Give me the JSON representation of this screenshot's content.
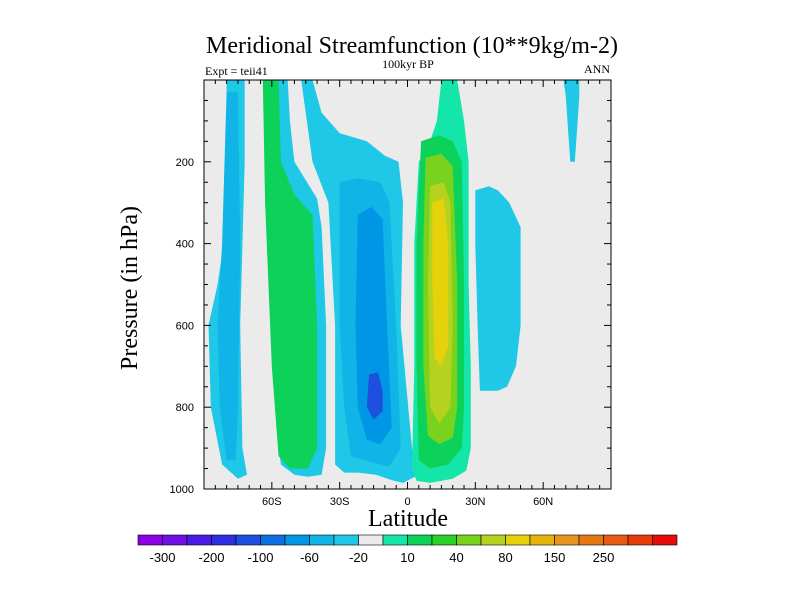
{
  "chart_data": {
    "type": "contour",
    "title": "Meridional Streamfunction (10**9kg/m-2)",
    "left_string": "Expt = teii41",
    "center_string": "100kyr BP",
    "right_string": "ANN",
    "xlabel": "Latitude",
    "ylabel": "Pressure (in hPa)",
    "x_ticks": [
      {
        "value": -60,
        "label": "60S"
      },
      {
        "value": -30,
        "label": "30S"
      },
      {
        "value": 0,
        "label": "0"
      },
      {
        "value": 30,
        "label": "30N"
      },
      {
        "value": 60,
        "label": "60N"
      }
    ],
    "y_ticks": [
      {
        "value": 200,
        "label": "200"
      },
      {
        "value": 400,
        "label": "400"
      },
      {
        "value": 600,
        "label": "600"
      },
      {
        "value": 800,
        "label": "800"
      },
      {
        "value": 1000,
        "label": "1000"
      }
    ],
    "xlim": [
      -90,
      90
    ],
    "ylim": [
      1000,
      0
    ],
    "colorbar": {
      "labels": [
        "-300",
        "-200",
        "-100",
        "-60",
        "-20",
        "10",
        "40",
        "80",
        "150",
        "250"
      ],
      "colors": [
        "#8C00E6",
        "#6E10E6",
        "#4A1CE6",
        "#2E30E0",
        "#1E50E0",
        "#0C70E0",
        "#0096E6",
        "#10B4E6",
        "#1EC8E6",
        "#EBEBEB",
        "#14E6AA",
        "#0CD25A",
        "#28D228",
        "#78D21E",
        "#B4D21E",
        "#E6D20A",
        "#E6B40A",
        "#E6961E",
        "#E67814",
        "#E65A14",
        "#E63C0A",
        "#E60A0A"
      ]
    },
    "background_color": "#EBEBEB",
    "regions": [
      {
        "level": -20,
        "color": "#1EC8E6",
        "points": [
          [
            -80,
            0
          ],
          [
            -72,
            0
          ],
          [
            -72,
            200
          ],
          [
            -74,
            600
          ],
          [
            -73,
            900
          ],
          [
            -71,
            965
          ],
          [
            -75,
            975
          ],
          [
            -82,
            940
          ],
          [
            -87,
            800
          ],
          [
            -88,
            600
          ],
          [
            -84,
            500
          ],
          [
            -80,
            350
          ]
        ]
      },
      {
        "level": -20,
        "color": "#1EC8E6",
        "points": [
          [
            -60,
            0
          ],
          [
            -53,
            0
          ],
          [
            -52,
            100
          ],
          [
            -50,
            200
          ],
          [
            -40,
            290
          ],
          [
            -38,
            360
          ],
          [
            -36,
            600
          ],
          [
            -36,
            900
          ],
          [
            -38,
            965
          ],
          [
            -44,
            970
          ],
          [
            -50,
            965
          ],
          [
            -56,
            940
          ],
          [
            -58,
            850
          ],
          [
            -60,
            600
          ],
          [
            -61,
            300
          ]
        ]
      },
      {
        "level": -20,
        "color": "#1EC8E6",
        "points": [
          [
            -47,
            0
          ],
          [
            -42,
            0
          ],
          [
            -38,
            80
          ],
          [
            -30,
            130
          ],
          [
            -18,
            150
          ],
          [
            -10,
            185
          ],
          [
            -4,
            200
          ],
          [
            -2,
            300
          ],
          [
            -3,
            600
          ],
          [
            2,
            900
          ],
          [
            5,
            965
          ],
          [
            -2,
            985
          ],
          [
            -6,
            980
          ],
          [
            -14,
            965
          ],
          [
            -22,
            960
          ],
          [
            -28,
            960
          ],
          [
            -32,
            940
          ],
          [
            -32,
            600
          ],
          [
            -35,
            300
          ],
          [
            -42,
            200
          ]
        ]
      },
      {
        "level": -20,
        "color": "#1EC8E6",
        "points": [
          [
            30,
            270
          ],
          [
            36,
            260
          ],
          [
            40,
            270
          ],
          [
            45,
            300
          ],
          [
            50,
            360
          ],
          [
            50,
            600
          ],
          [
            48,
            700
          ],
          [
            44,
            750
          ],
          [
            40,
            760
          ],
          [
            32,
            760
          ],
          [
            31,
            600
          ],
          [
            30,
            400
          ]
        ]
      },
      {
        "level": -20,
        "color": "#1EC8E6",
        "points": [
          [
            69,
            0
          ],
          [
            76,
            0
          ],
          [
            76,
            40
          ],
          [
            75,
            120
          ],
          [
            74,
            200
          ],
          [
            72,
            200
          ],
          [
            71,
            120
          ],
          [
            70,
            40
          ]
        ]
      },
      {
        "level": -60,
        "color": "#10B4E6",
        "points": [
          [
            -80,
            30
          ],
          [
            -75,
            30
          ],
          [
            -74,
            400
          ],
          [
            -75,
            800
          ],
          [
            -76,
            930
          ],
          [
            -80,
            930
          ],
          [
            -83,
            800
          ],
          [
            -84,
            600
          ],
          [
            -82,
            400
          ]
        ]
      },
      {
        "level": -60,
        "color": "#10B4E6",
        "points": [
          [
            -30,
            250
          ],
          [
            -22,
            240
          ],
          [
            -12,
            250
          ],
          [
            -8,
            300
          ],
          [
            -5,
            600
          ],
          [
            -3,
            900
          ],
          [
            -8,
            945
          ],
          [
            -16,
            935
          ],
          [
            -25,
            920
          ],
          [
            -28,
            800
          ],
          [
            -30,
            600
          ]
        ]
      },
      {
        "level": -100,
        "color": "#0096E6",
        "points": [
          [
            -22,
            330
          ],
          [
            -16,
            310
          ],
          [
            -11,
            340
          ],
          [
            -9,
            600
          ],
          [
            -7,
            850
          ],
          [
            -12,
            890
          ],
          [
            -18,
            880
          ],
          [
            -22,
            800
          ],
          [
            -23,
            600
          ]
        ]
      },
      {
        "level": -200,
        "color": "#1E50E0",
        "points": [
          [
            -17,
            720
          ],
          [
            -13,
            715
          ],
          [
            -11,
            760
          ],
          [
            -11,
            810
          ],
          [
            -15,
            830
          ],
          [
            -18,
            800
          ]
        ]
      },
      {
        "level": 10,
        "color": "#14E6AA",
        "points": [
          [
            15,
            0
          ],
          [
            22,
            0
          ],
          [
            25,
            100
          ],
          [
            27,
            200
          ],
          [
            27,
            500
          ],
          [
            28,
            700
          ],
          [
            28,
            900
          ],
          [
            26,
            955
          ],
          [
            20,
            975
          ],
          [
            10,
            985
          ],
          [
            4,
            980
          ],
          [
            2,
            950
          ],
          [
            3,
            700
          ],
          [
            3,
            400
          ],
          [
            5,
            200
          ],
          [
            10,
            150
          ],
          [
            13,
            100
          ]
        ]
      },
      {
        "level": 40,
        "color": "#0CD25A",
        "points": [
          [
            -64,
            0
          ],
          [
            -57,
            0
          ],
          [
            -56,
            200
          ],
          [
            -50,
            280
          ],
          [
            -42,
            330
          ],
          [
            -40,
            600
          ],
          [
            -40,
            900
          ],
          [
            -44,
            950
          ],
          [
            -52,
            950
          ],
          [
            -57,
            920
          ],
          [
            -60,
            700
          ],
          [
            -63,
            300
          ]
        ]
      },
      {
        "level": 40,
        "color": "#0CD25A",
        "points": [
          [
            6,
            150
          ],
          [
            14,
            135
          ],
          [
            20,
            150
          ],
          [
            24,
            200
          ],
          [
            25,
            500
          ],
          [
            25,
            800
          ],
          [
            24,
            900
          ],
          [
            18,
            940
          ],
          [
            10,
            950
          ],
          [
            5,
            930
          ],
          [
            4,
            700
          ],
          [
            4,
            400
          ]
        ]
      },
      {
        "level": 80,
        "color": "#78D21E",
        "points": [
          [
            8,
            190
          ],
          [
            15,
            180
          ],
          [
            20,
            210
          ],
          [
            22,
            500
          ],
          [
            22,
            800
          ],
          [
            20,
            875
          ],
          [
            14,
            890
          ],
          [
            9,
            870
          ],
          [
            7,
            700
          ],
          [
            7,
            400
          ]
        ]
      },
      {
        "level": 150,
        "color": "#B4D21E",
        "points": [
          [
            10,
            260
          ],
          [
            16,
            250
          ],
          [
            19,
            300
          ],
          [
            20,
            600
          ],
          [
            19,
            800
          ],
          [
            14,
            840
          ],
          [
            10,
            800
          ],
          [
            9,
            500
          ]
        ]
      },
      {
        "level": 250,
        "color": "#E6D20A",
        "points": [
          [
            11,
            300
          ],
          [
            16,
            290
          ],
          [
            18,
            400
          ],
          [
            18,
            650
          ],
          [
            15,
            700
          ],
          [
            12,
            680
          ],
          [
            11,
            500
          ]
        ]
      }
    ]
  }
}
